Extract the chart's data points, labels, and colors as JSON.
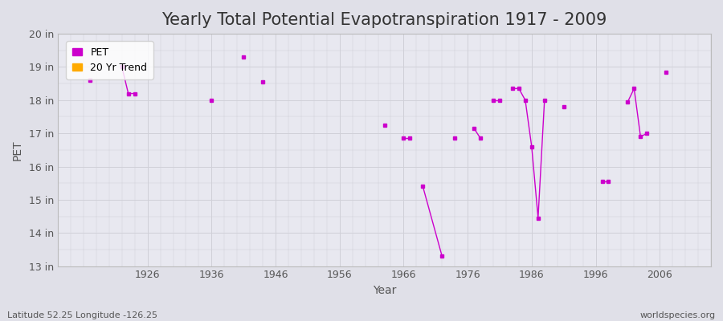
{
  "title": "Yearly Total Potential Evapotranspiration 1917 - 2009",
  "xlabel": "Year",
  "ylabel": "PET",
  "background_color": "#e0e0e8",
  "plot_bg_color": "#e8e8f0",
  "grid_color": "#d0d0d8",
  "line_color": "#cc00cc",
  "trend_color": "#ffaa00",
  "ylim": [
    13,
    20
  ],
  "yticks": [
    13,
    14,
    15,
    16,
    17,
    18,
    19,
    20
  ],
  "ytick_labels": [
    "13 in",
    "14 in",
    "15 in",
    "16 in",
    "17 in",
    "18 in",
    "19 in",
    "20 in"
  ],
  "xlim": [
    1912,
    2014
  ],
  "xticks": [
    1926,
    1936,
    1946,
    1956,
    1966,
    1976,
    1986,
    1996,
    2006
  ],
  "xtick_labels": [
    "1926",
    "1936",
    "1946",
    "1956",
    "1966",
    "1976",
    "1986",
    "1996",
    "2006"
  ],
  "pet_segments": [
    [
      [
        1917,
        18.6
      ]
    ],
    [
      [
        1922,
        19.0
      ],
      [
        1923,
        18.2
      ],
      [
        1924,
        18.2
      ]
    ],
    [
      [
        1936,
        18.0
      ]
    ],
    [
      [
        1941,
        19.3
      ]
    ],
    [
      [
        1944,
        18.55
      ]
    ],
    [
      [
        1963,
        17.25
      ]
    ],
    [
      [
        1966,
        16.85
      ],
      [
        1967,
        16.85
      ]
    ],
    [
      [
        1969,
        15.4
      ],
      [
        1972,
        13.3
      ]
    ],
    [
      [
        1974,
        16.85
      ]
    ],
    [
      [
        1977,
        17.15
      ],
      [
        1978,
        16.85
      ]
    ],
    [
      [
        1980,
        18.0
      ],
      [
        1981,
        18.0
      ]
    ],
    [
      [
        1983,
        18.35
      ],
      [
        1984,
        18.35
      ],
      [
        1985,
        18.0
      ],
      [
        1986,
        16.6
      ],
      [
        1987,
        14.45
      ],
      [
        1988,
        18.0
      ]
    ],
    [
      [
        1991,
        17.8
      ]
    ],
    [
      [
        1997,
        15.55
      ],
      [
        1998,
        15.55
      ]
    ],
    [
      [
        2001,
        17.95
      ],
      [
        2002,
        18.35
      ],
      [
        2003,
        16.9
      ],
      [
        2004,
        17.0
      ]
    ],
    [
      [
        2007,
        18.85
      ]
    ]
  ],
  "footnote_left": "Latitude 52.25 Longitude -126.25",
  "footnote_right": "worldspecies.org",
  "title_fontsize": 15,
  "axis_label_fontsize": 10,
  "tick_fontsize": 9,
  "footnote_fontsize": 8
}
